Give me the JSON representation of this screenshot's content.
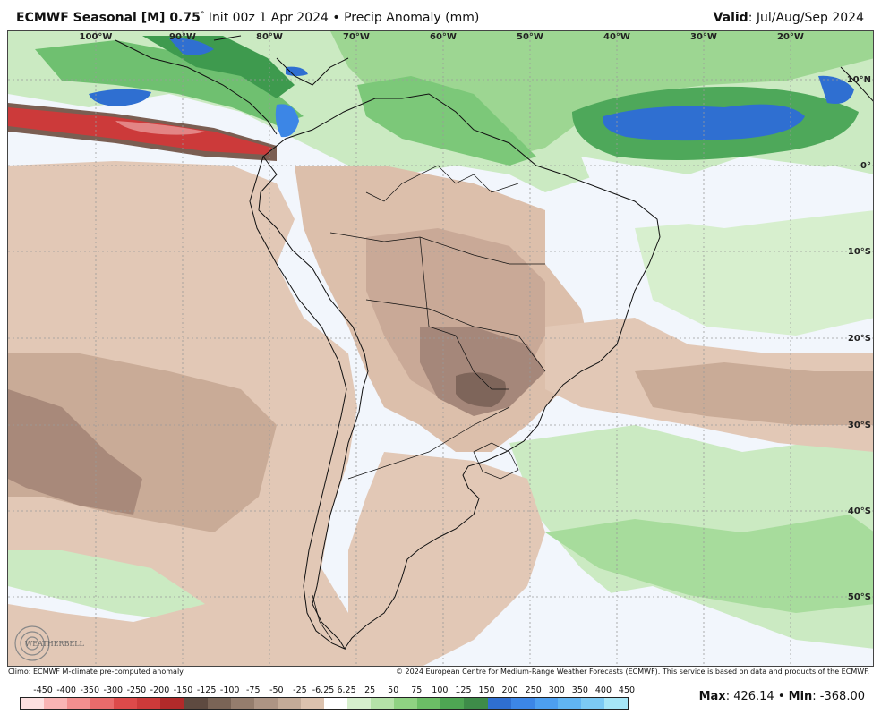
{
  "header": {
    "title_bold": "ECMWF Seasonal [M] 0.75",
    "title_deg": "°",
    "title_rest": " Init 00z 1 Apr 2024 • Precip Anomaly (mm)",
    "valid_label": "Valid",
    "valid_value": ": Jul/Aug/Sep 2024"
  },
  "map": {
    "lon_labels": [
      "100°W",
      "90°W",
      "80°W",
      "70°W",
      "60°W",
      "50°W",
      "40°W",
      "30°W",
      "20°W"
    ],
    "lat_labels": [
      "10°N",
      "0°",
      "10°S",
      "20°S",
      "30°S",
      "40°S",
      "50°S"
    ]
  },
  "footer": {
    "climo": "Climo: ECMWF M-climate pre-computed anomaly",
    "copyright": "© 2024 European Centre for Medium-Range Weather Forecasts (ECMWF). This service is based on data and products of the ECMWF."
  },
  "legend": {
    "ticks": [
      "-450",
      "-400",
      "-350",
      "-300",
      "-250",
      "-200",
      "-150",
      "-125",
      "-100",
      "-75",
      "-50",
      "-25",
      "-6.25",
      "6.25",
      "25",
      "50",
      "75",
      "100",
      "125",
      "150",
      "200",
      "250",
      "300",
      "350",
      "400",
      "450"
    ],
    "colors": [
      "#fde0e0",
      "#f9b4b4",
      "#f28f8f",
      "#ea6b6b",
      "#dd4a4a",
      "#cc3a3a",
      "#b22a2a",
      "#5e4a40",
      "#7a6456",
      "#957d6d",
      "#ad9484",
      "#c4ab98",
      "#dcc2ae",
      "#ffffff",
      "#d6efcc",
      "#b5e2a8",
      "#8fd282",
      "#6cbe66",
      "#4ea653",
      "#3e8c49",
      "#2f6fd1",
      "#3c86e6",
      "#4d9ff0",
      "#61b5f2",
      "#7ccaf4",
      "#a6e6f7"
    ]
  },
  "stats": {
    "max_label": "Max",
    "max_value": ": 426.14 •",
    "min_label": "Min",
    "min_value": ": -368.00"
  },
  "logo": {
    "text": "WEATHERBELL"
  }
}
